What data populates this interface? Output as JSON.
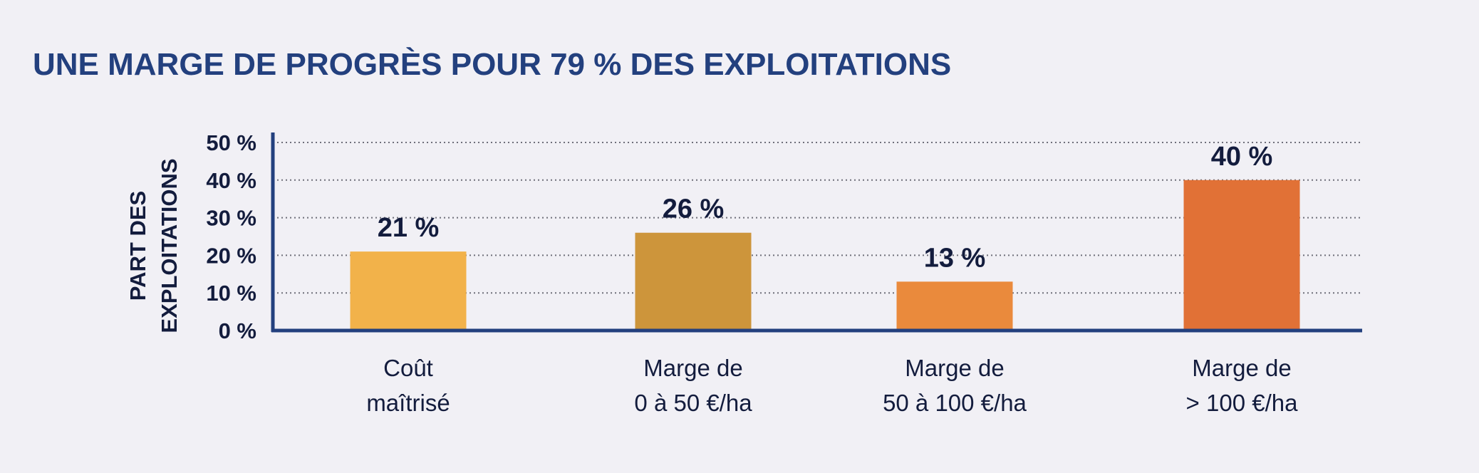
{
  "title": "UNE MARGE DE PROGRÈS POUR 79 % DES EXPLOITATIONS",
  "chart_data": {
    "type": "bar",
    "title": "UNE MARGE DE PROGRÈS POUR 79 % DES EXPLOITATIONS",
    "ylabel": [
      "PART DES",
      "EXPLOITATIONS"
    ],
    "xlabel": "",
    "ylim": [
      0,
      50
    ],
    "grid": true,
    "yticks": [
      {
        "value": 0,
        "label": "0 %"
      },
      {
        "value": 10,
        "label": "10 %"
      },
      {
        "value": 20,
        "label": "20 %"
      },
      {
        "value": 30,
        "label": "30 %"
      },
      {
        "value": 40,
        "label": "40 %"
      },
      {
        "value": 50,
        "label": "50 %"
      }
    ],
    "categories": [
      [
        "Coût",
        "maîtrisé"
      ],
      [
        "Marge de",
        "0 à 50 €/ha"
      ],
      [
        "Marge de",
        "50 à 100 €/ha"
      ],
      [
        "Marge de",
        "> 100 €/ha"
      ]
    ],
    "values": [
      21,
      26,
      13,
      40
    ],
    "data_labels": [
      "21 %",
      "26 %",
      "13 %",
      "40 %"
    ],
    "colors": [
      "#f2b24a",
      "#cd953b",
      "#ea8a3c",
      "#e17136"
    ]
  },
  "colors": {
    "title": "#23407e",
    "axis": "#23407e",
    "text": "#131c3d",
    "grid": "#6f6f7a",
    "background": "#f1f0f5"
  }
}
